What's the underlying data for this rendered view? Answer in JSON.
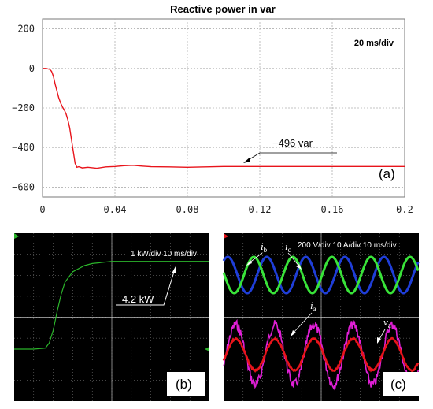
{
  "chart_data": [
    {
      "type": "line",
      "title": "Reactive power in var",
      "xlim": [
        0,
        0.2
      ],
      "ylim": [
        -650,
        250
      ],
      "x_ticks": [
        "0",
        "0.04",
        "0.08",
        "0.12",
        "0.16",
        "0.2"
      ],
      "y_ticks": [
        "200",
        "0",
        "−200",
        "−400",
        "−600"
      ],
      "scale_note": "20 ms/div",
      "annotation": "−496 var",
      "panel_label": "(a)",
      "grid": true,
      "series": [
        {
          "color": "#e8141b",
          "x": [
            0,
            0.002,
            0.004,
            0.005,
            0.006,
            0.007,
            0.008,
            0.009,
            0.01,
            0.011,
            0.012,
            0.013,
            0.014,
            0.015,
            0.016,
            0.017,
            0.018,
            0.019,
            0.02,
            0.022,
            0.025,
            0.03,
            0.035,
            0.04,
            0.045,
            0.05,
            0.055,
            0.06,
            0.07,
            0.08,
            0.09,
            0.1,
            0.12,
            0.14,
            0.16,
            0.18,
            0.2
          ],
          "values": [
            0,
            0,
            -5,
            -15,
            -40,
            -80,
            -115,
            -150,
            -175,
            -195,
            -210,
            -230,
            -260,
            -300,
            -360,
            -420,
            -480,
            -500,
            -497,
            -503,
            -500,
            -505,
            -498,
            -496,
            -492,
            -490,
            -494,
            -497,
            -498,
            -500,
            -498,
            -496,
            -496,
            -496,
            -496,
            -496,
            -496
          ]
        }
      ]
    },
    {
      "type": "line",
      "scale_note": "1 kW/div   10 ms/div",
      "callout": "4.2 kW",
      "panel_label": "(b)",
      "background": "#000000",
      "series": [
        {
          "color": "#2bb52b",
          "x": [
            0,
            5,
            8,
            9,
            10,
            11,
            12,
            13,
            15,
            18,
            20,
            25,
            30,
            50
          ],
          "values": [
            0,
            0,
            0.05,
            0.3,
            0.9,
            1.8,
            2.6,
            3.2,
            3.7,
            4.0,
            4.1,
            4.2,
            4.2,
            4.2
          ]
        }
      ]
    },
    {
      "type": "line",
      "scale_note": "200 V/div   10 A/div   10 ms/div",
      "panel_label": "(c)",
      "background": "#000000",
      "labels": {
        "ib": {
          "sym": "i",
          "sub": "b"
        },
        "ic": {
          "sym": "i",
          "sub": "c"
        },
        "ia": {
          "sym": "i",
          "sub": "a"
        },
        "va": {
          "sym": "v",
          "sub": "a"
        }
      },
      "series": [
        {
          "name_key": "ib",
          "color": "#1f3ed8"
        },
        {
          "name_key": "ic",
          "color": "#39e339"
        },
        {
          "name_key": "va",
          "color": "#e01fd6"
        },
        {
          "name_key": "ia",
          "color": "#e8141b"
        }
      ]
    }
  ]
}
